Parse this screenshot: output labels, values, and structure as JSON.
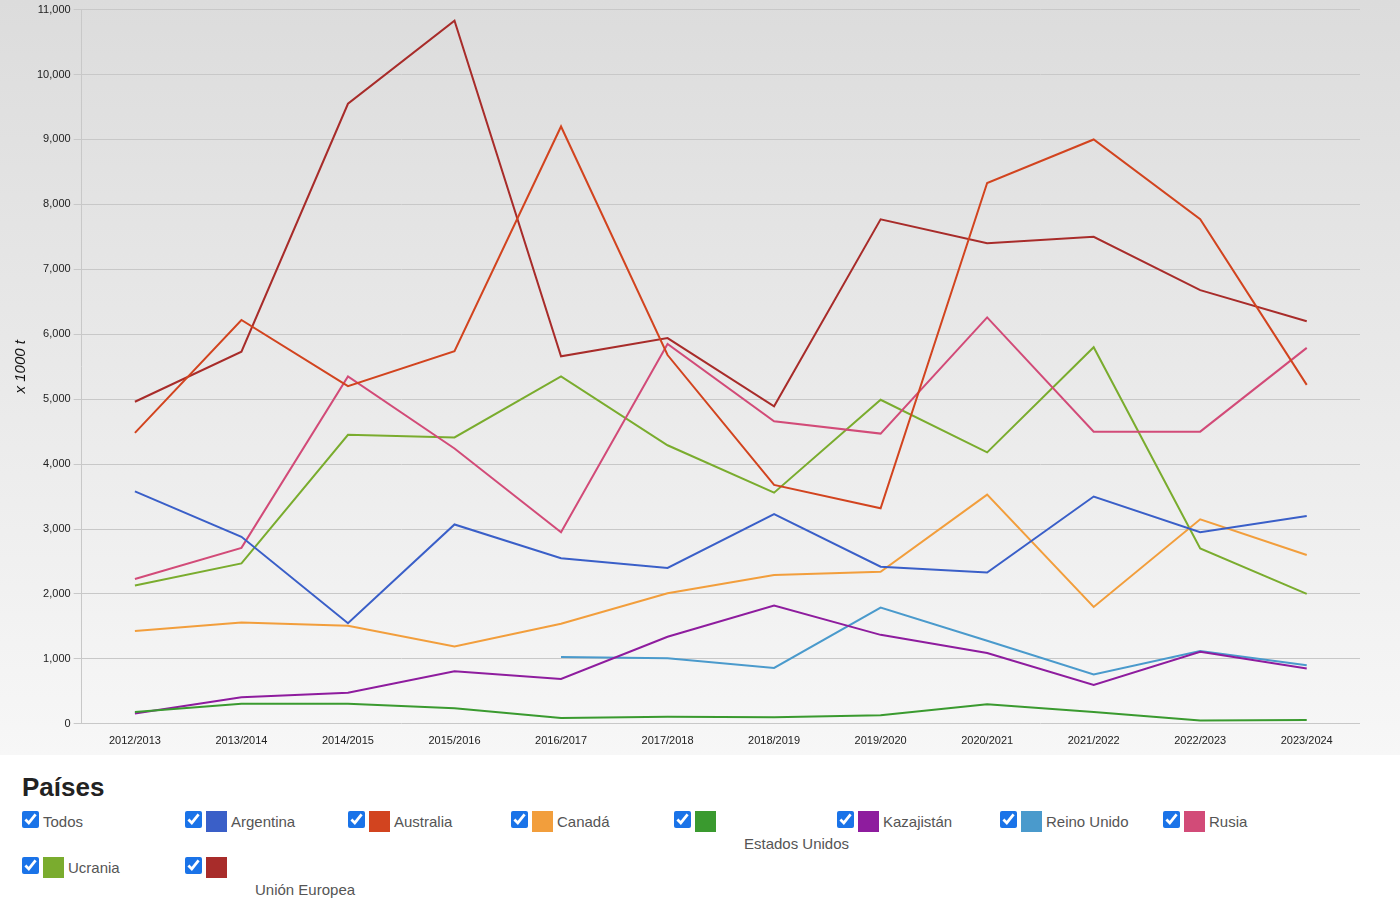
{
  "chart_data": {
    "type": "line",
    "y_label": "x 1000 t",
    "legend_title": "Países",
    "legend_select_all": "Todos",
    "categories": [
      "2012/2013",
      "2013/2014",
      "2014/2015",
      "2015/2016",
      "2016/2017",
      "2017/2018",
      "2018/2019",
      "2019/2020",
      "2020/2021",
      "2021/2022",
      "2022/2023",
      "2023/2024"
    ],
    "ylim": [
      0,
      11000
    ],
    "yticks": [
      0,
      {
        "value": 1000,
        "label": "1,000"
      },
      {
        "value": 2000,
        "label": "2,000"
      },
      {
        "value": 3000,
        "label": "3,000"
      },
      {
        "value": 4000,
        "label": "4,000"
      },
      {
        "value": 5000,
        "label": "5,000"
      },
      {
        "value": 6000,
        "label": "6,000"
      },
      {
        "value": 7000,
        "label": "7,000"
      },
      {
        "value": 8000,
        "label": "8,000"
      },
      {
        "value": 9000,
        "label": "9,000"
      },
      {
        "value": 10000,
        "label": "10,000"
      },
      {
        "value": 11000,
        "label": "11,000"
      }
    ],
    "grid": true,
    "marker": "none",
    "series": [
      {
        "name": "Argentina",
        "color": "#3a5fc8",
        "values": [
          3580,
          2880,
          1550,
          3070,
          2550,
          2400,
          3230,
          2420,
          2330,
          3500,
          2950,
          3200
        ]
      },
      {
        "name": "Australia",
        "color": "#d2441f",
        "values": [
          4480,
          6220,
          5200,
          5740,
          9200,
          5680,
          3680,
          3320,
          8330,
          9000,
          7770,
          5220
        ]
      },
      {
        "name": "Canadá",
        "color": "#f29e3c",
        "values": [
          1430,
          1560,
          1510,
          1190,
          1540,
          2010,
          2290,
          2340,
          3530,
          1800,
          3150,
          2600
        ]
      },
      {
        "name": "Estados Unidos",
        "color": "#3a9a2f",
        "values": [
          180,
          310,
          310,
          240,
          90,
          110,
          100,
          130,
          300,
          180,
          50,
          60
        ]
      },
      {
        "name": "Kazajistán",
        "color": "#8e1c9e",
        "values": [
          160,
          410,
          480,
          810,
          690,
          1340,
          1820,
          1370,
          1090,
          600,
          1110,
          850
        ]
      },
      {
        "name": "Reino Unido",
        "color": "#4a9acc",
        "values": [
          null,
          null,
          null,
          null,
          1030,
          1010,
          860,
          1790,
          1280,
          760,
          1120,
          900
        ]
      },
      {
        "name": "Rusia",
        "color": "#d24b78",
        "values": [
          2230,
          2710,
          5350,
          4240,
          2950,
          5850,
          4660,
          4470,
          6260,
          4500,
          4500,
          5790
        ]
      },
      {
        "name": "Ucrania",
        "color": "#7aac2e",
        "values": [
          2130,
          2470,
          4450,
          4410,
          5350,
          4290,
          3560,
          4990,
          4180,
          5800,
          2700,
          2000
        ]
      },
      {
        "name": "Unión Europea",
        "color": "#a82c2a",
        "values": [
          4960,
          5730,
          9550,
          10830,
          5660,
          5940,
          4890,
          7770,
          7400,
          7500,
          6680,
          6200
        ]
      }
    ]
  }
}
